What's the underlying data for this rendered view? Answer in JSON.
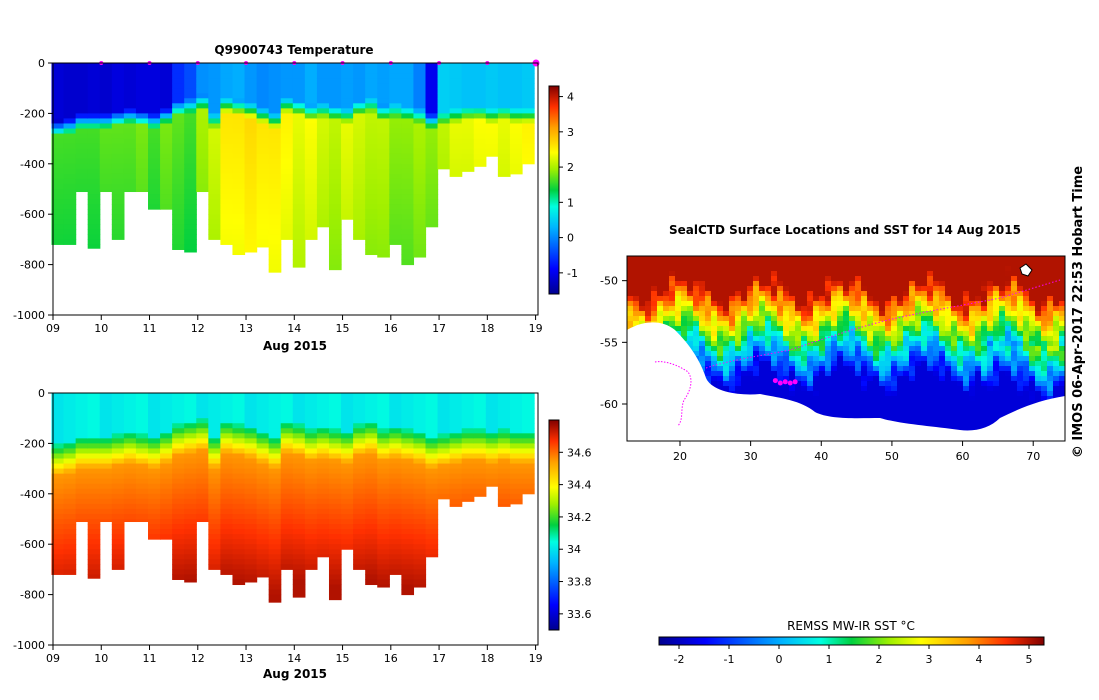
{
  "chart_data": [
    {
      "type": "heatmap",
      "title": "Q9900743  Temperature",
      "xlabel": "Aug 2015",
      "ylabel": "",
      "x_ticks": [
        "09",
        "10",
        "11",
        "12",
        "13",
        "14",
        "15",
        "16",
        "17",
        "18",
        "19"
      ],
      "y_ticks": [
        "0",
        "-200",
        "-400",
        "-600",
        "-800",
        "-1000"
      ],
      "xlim": [
        9,
        19.05
      ],
      "ylim": [
        -1000,
        0
      ],
      "colorbar": {
        "ticks": [
          "4",
          "3",
          "2",
          "1",
          "0",
          "-1"
        ],
        "range": [
          -1.6,
          4.3
        ]
      },
      "profiles": {
        "x_day": [
          9.1,
          9.35,
          9.6,
          9.85,
          10.1,
          10.35,
          10.6,
          10.85,
          11.1,
          11.35,
          11.6,
          11.85,
          12.1,
          12.35,
          12.6,
          12.85,
          13.1,
          13.35,
          13.6,
          13.85,
          14.1,
          14.35,
          14.6,
          14.85,
          15.1,
          15.35,
          15.6,
          15.85,
          16.1,
          16.35,
          16.6,
          16.85,
          17.1,
          17.35,
          17.6,
          17.85,
          18.1,
          18.35,
          18.6,
          18.85
        ],
        "max_depth": [
          -720,
          -720,
          -510,
          -735,
          -510,
          -700,
          -510,
          -510,
          -580,
          -580,
          -740,
          -750,
          -510,
          -700,
          -720,
          -760,
          -750,
          -730,
          -830,
          -700,
          -810,
          -700,
          -650,
          -820,
          -620,
          -700,
          -760,
          -770,
          -720,
          -800,
          -770,
          -650,
          -420,
          -450,
          -430,
          -410,
          -370,
          -450,
          -440,
          -400
        ],
        "mixed_layer_depth": [
          -230,
          -220,
          -200,
          -200,
          -200,
          -190,
          -180,
          -190,
          -200,
          -180,
          -150,
          -140,
          -130,
          -200,
          -140,
          -150,
          -160,
          -180,
          -200,
          -140,
          -150,
          -170,
          -160,
          -170,
          -180,
          -150,
          -140,
          -170,
          -160,
          -170,
          -180,
          -200,
          -190,
          -180,
          -170,
          -170,
          -180,
          -170,
          -180,
          -180
        ],
        "surface_value": [
          -1.2,
          -1.2,
          -1.2,
          -1.2,
          -1.2,
          -1.1,
          -1.2,
          -1.1,
          -1.1,
          -1.2,
          -0.6,
          -0.4,
          0.0,
          0.1,
          0.2,
          0.2,
          0.1,
          0.0,
          0.0,
          0.1,
          0.1,
          0.2,
          0.1,
          0.1,
          0.1,
          0.1,
          0.2,
          0.1,
          0.2,
          0.2,
          -0.1,
          -1.0,
          0.5,
          0.4,
          0.4,
          0.4,
          0.4,
          0.4,
          0.4,
          0.4
        ],
        "deep_value": [
          1.6,
          1.6,
          1.6,
          1.6,
          1.7,
          1.7,
          1.7,
          1.8,
          1.6,
          1.8,
          1.7,
          1.6,
          2.0,
          2.2,
          2.6,
          2.6,
          2.7,
          2.6,
          2.6,
          2.5,
          2.3,
          2.4,
          2.2,
          2.1,
          2.3,
          2.2,
          2.1,
          2.1,
          1.9,
          1.9,
          2.0,
          1.9,
          2.1,
          2.3,
          2.3,
          2.4,
          2.4,
          2.3,
          2.4,
          2.5
        ]
      },
      "surface_markers_day": [
        10,
        11,
        12,
        13,
        14,
        15,
        16,
        17,
        18
      ]
    },
    {
      "type": "heatmap",
      "title": "",
      "xlabel": "Aug 2015",
      "ylabel": "",
      "x_ticks": [
        "09",
        "10",
        "11",
        "12",
        "13",
        "14",
        "15",
        "16",
        "17",
        "18",
        "19"
      ],
      "y_ticks": [
        "0",
        "-200",
        "-400",
        "-600",
        "-800",
        "-1000"
      ],
      "xlim": [
        9,
        19.05
      ],
      "ylim": [
        -1000,
        0
      ],
      "colorbar": {
        "ticks": [
          "34.6",
          "34.4",
          "34.2",
          "34",
          "33.8",
          "33.6"
        ],
        "range": [
          33.5,
          34.8
        ]
      }
    },
    {
      "type": "heatmap",
      "title": "SealCTD Surface Locations and SST for 14 Aug 2015",
      "xlabel": "",
      "ylabel": "",
      "x_ticks": [
        "20",
        "30",
        "40",
        "50",
        "60",
        "70"
      ],
      "y_ticks": [
        "-50",
        "-55",
        "-60"
      ],
      "xlim": [
        12.5,
        74.5
      ],
      "ylim": [
        -63,
        -48
      ],
      "colorbar": {
        "label": "REMSS MW-IR SST °C",
        "ticks": [
          "-2",
          "-1",
          "0",
          "1",
          "2",
          "3",
          "4",
          "5"
        ],
        "range": [
          -2.4,
          5.3
        ]
      },
      "track": {
        "lon": [
          33.5,
          34.2,
          34.9,
          35.6,
          36.3
        ],
        "lat": [
          -58.1,
          -58.3,
          -58.2,
          -58.3,
          -58.2
        ]
      }
    }
  ],
  "credit": "© IMOS 06-Apr-2017 22:53 Hobart Time"
}
